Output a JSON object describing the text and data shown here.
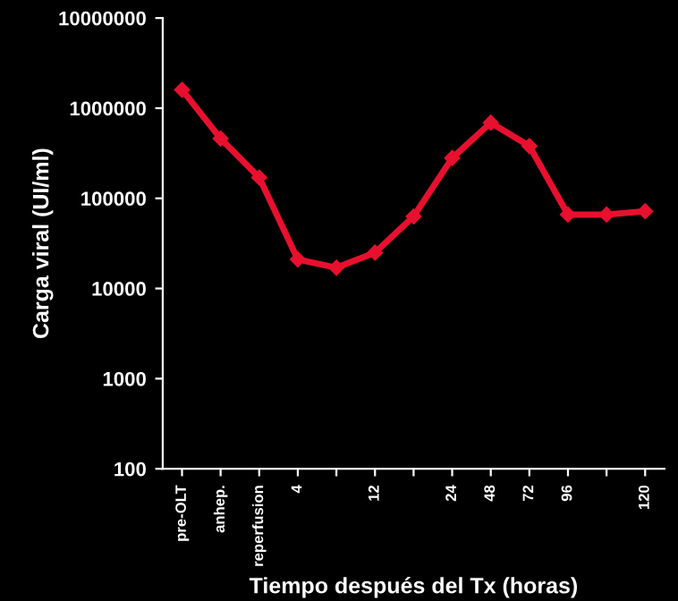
{
  "chart_data": {
    "type": "line",
    "xlabel": "Tiempo después del Tx (horas)",
    "ylabel": "Carga viral (UI/ml)",
    "categories": [
      "pre-OLT",
      "anhep.",
      "reperfusion",
      "4",
      null,
      "12",
      null,
      "24",
      "48",
      "72",
      "96",
      null,
      "120"
    ],
    "series": [
      {
        "color": "#e8102e",
        "values": [
          1600000,
          460000,
          170000,
          21000,
          17000,
          25000,
          63000,
          280000,
          690000,
          380000,
          66000,
          66000,
          72000
        ]
      }
    ],
    "log": true,
    "ylim": [
      100,
      10000000
    ],
    "yticks": [
      100,
      1000,
      10000,
      100000,
      1000000,
      10000000
    ],
    "marker": "diamond",
    "line_style": "solid",
    "grid": false,
    "legend": false
  }
}
